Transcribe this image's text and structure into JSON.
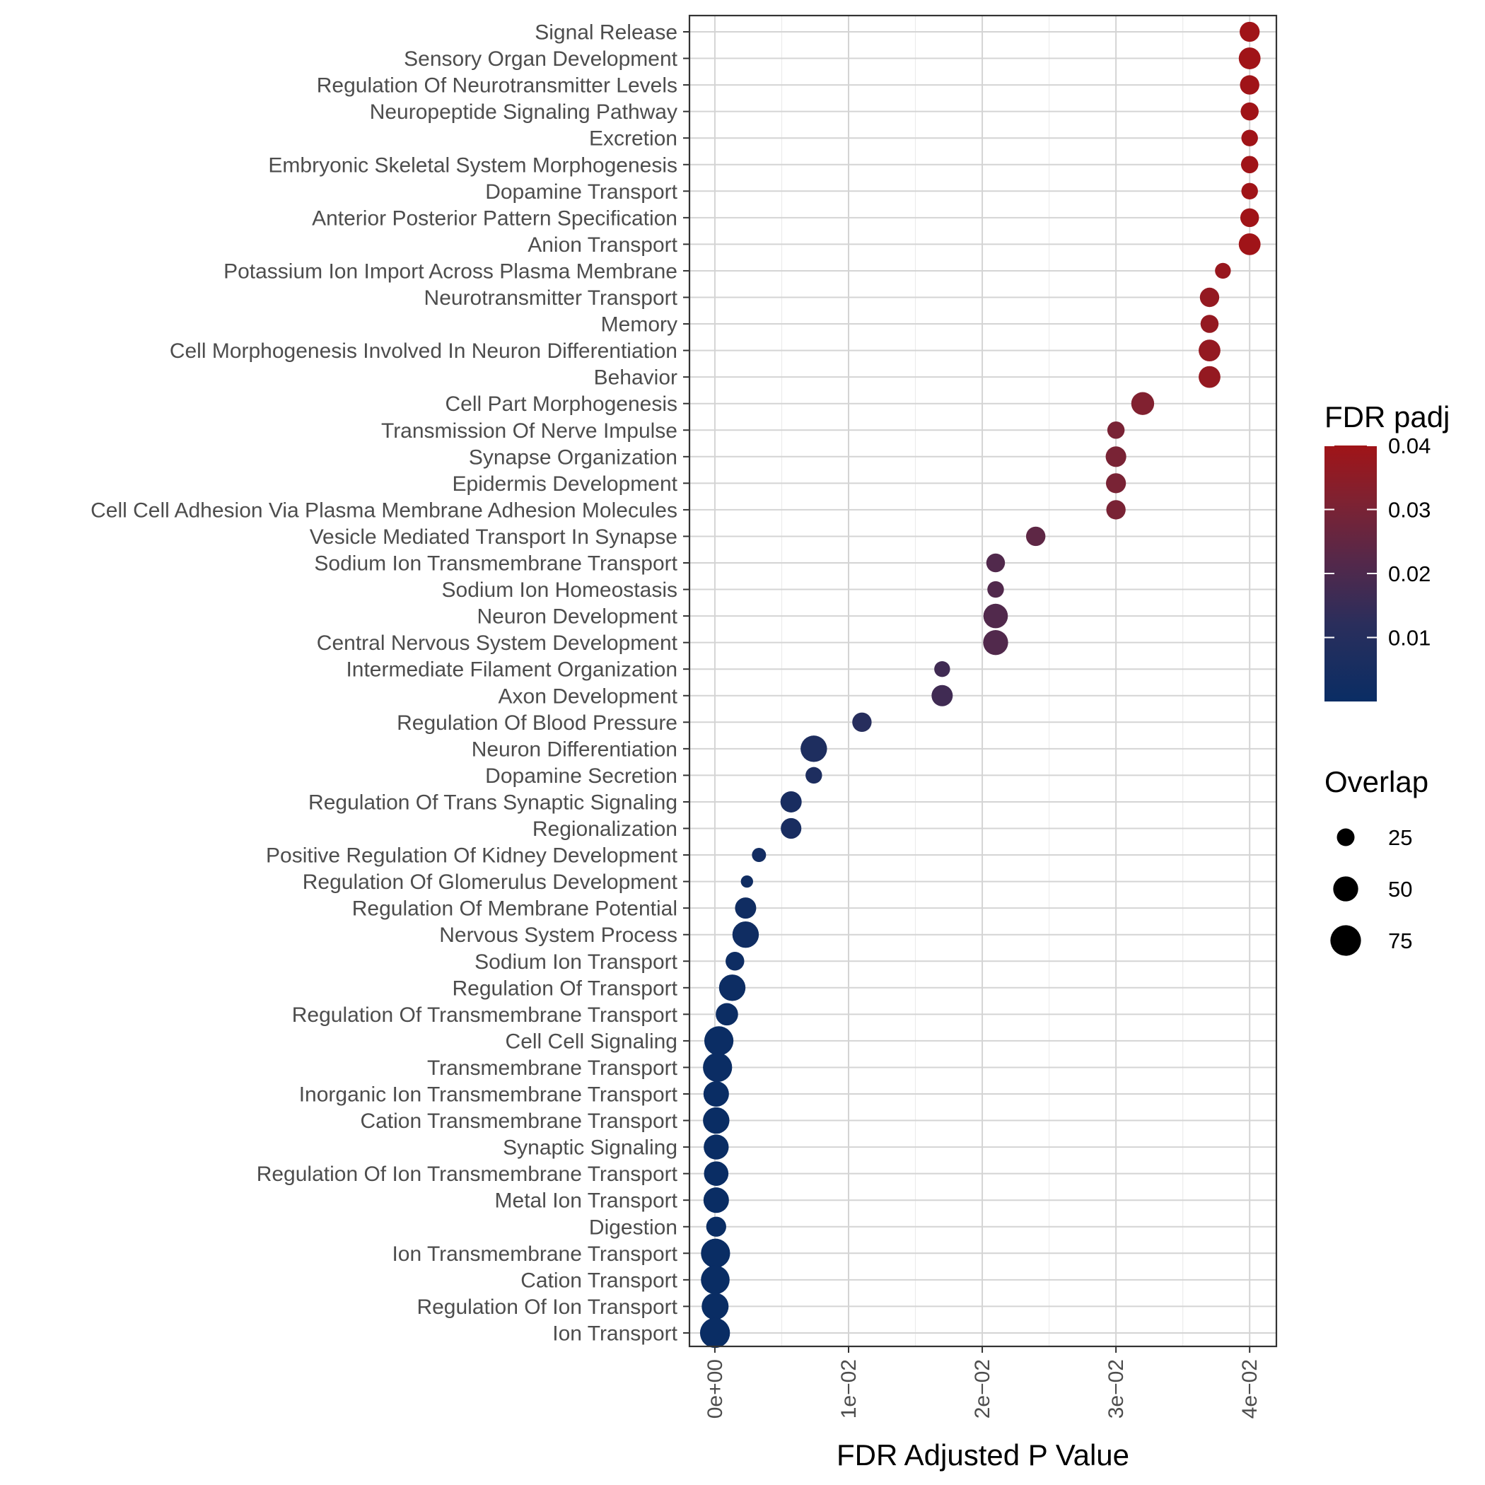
{
  "chart_data": {
    "type": "scatter",
    "xlabel": "FDR Adjusted P Value",
    "ylabel": "",
    "xlim": [
      -0.0019,
      0.042
    ],
    "x_ticks": [
      0,
      0.01,
      0.02,
      0.03,
      0.04
    ],
    "x_tick_labels": [
      "0e+00",
      "1e−02",
      "2e−02",
      "3e−02",
      "4e−02"
    ],
    "grid": true,
    "color_legend": {
      "title": "FDR padj",
      "range": [
        0,
        0.04
      ],
      "ticks": [
        0.01,
        0.02,
        0.03,
        0.04
      ],
      "tick_labels": [
        "0.01",
        "0.02",
        "0.03",
        "0.04"
      ],
      "low_color": "#0a2d64",
      "high_color": "#a01418"
    },
    "size_legend": {
      "title": "Overlap",
      "values": [
        25,
        50,
        75
      ],
      "labels": [
        "25",
        "50",
        "75"
      ]
    },
    "legend_position": "right",
    "categories": [
      "Signal Release",
      "Sensory Organ Development",
      "Regulation Of Neurotransmitter Levels",
      "Neuropeptide Signaling Pathway",
      "Excretion",
      "Embryonic Skeletal System Morphogenesis",
      "Dopamine Transport",
      "Anterior Posterior Pattern Specification",
      "Anion Transport",
      "Potassium Ion Import Across Plasma Membrane",
      "Neurotransmitter Transport",
      "Memory",
      "Cell Morphogenesis Involved In Neuron Differentiation",
      "Behavior",
      "Cell Part Morphogenesis",
      "Transmission Of Nerve Impulse",
      "Synapse Organization",
      "Epidermis Development",
      "Cell Cell Adhesion Via Plasma Membrane Adhesion Molecules",
      "Vesicle Mediated Transport In Synapse",
      "Sodium Ion Transmembrane Transport",
      "Sodium Ion Homeostasis",
      "Neuron Development",
      "Central Nervous System Development",
      "Intermediate Filament Organization",
      "Axon Development",
      "Regulation Of Blood Pressure",
      "Neuron Differentiation",
      "Dopamine Secretion",
      "Regulation Of Trans Synaptic Signaling",
      "Regionalization",
      "Positive Regulation Of Kidney Development",
      "Regulation Of Glomerulus Development",
      "Regulation Of Membrane Potential",
      "Nervous System Process",
      "Sodium Ion Transport",
      "Regulation Of Transport",
      "Regulation Of Transmembrane Transport",
      "Cell Cell Signaling",
      "Transmembrane Transport",
      "Inorganic Ion Transmembrane Transport",
      "Cation Transmembrane Transport",
      "Synaptic Signaling",
      "Regulation Of Ion Transmembrane Transport",
      "Metal Ion Transport",
      "Digestion",
      "Ion Transmembrane Transport",
      "Cation Transport",
      "Regulation Of Ion Transport",
      "Ion Transport"
    ],
    "x": [
      0.04,
      0.04,
      0.04,
      0.04,
      0.04,
      0.04,
      0.04,
      0.04,
      0.04,
      0.038,
      0.037,
      0.037,
      0.037,
      0.037,
      0.032,
      0.03,
      0.03,
      0.03,
      0.03,
      0.024,
      0.021,
      0.021,
      0.021,
      0.021,
      0.017,
      0.017,
      0.011,
      0.0074,
      0.0074,
      0.0057,
      0.0057,
      0.0033,
      0.0024,
      0.0023,
      0.0023,
      0.0015,
      0.0013,
      0.0009,
      0.0003,
      0.0002,
      0.0001,
      0.0001,
      0.0001,
      0.0001,
      0.0001,
      0.0001,
      5e-05,
      3e-05,
      2e-05,
      1e-05
    ],
    "overlap": [
      32,
      38,
      30,
      26,
      22,
      24,
      22,
      28,
      38,
      20,
      30,
      26,
      38,
      38,
      42,
      24,
      34,
      32,
      30,
      30,
      28,
      22,
      48,
      50,
      20,
      36,
      30,
      56,
      22,
      36,
      34,
      16,
      12,
      36,
      56,
      28,
      56,
      40,
      68,
      68,
      52,
      56,
      50,
      48,
      52,
      32,
      68,
      66,
      58,
      72
    ]
  }
}
